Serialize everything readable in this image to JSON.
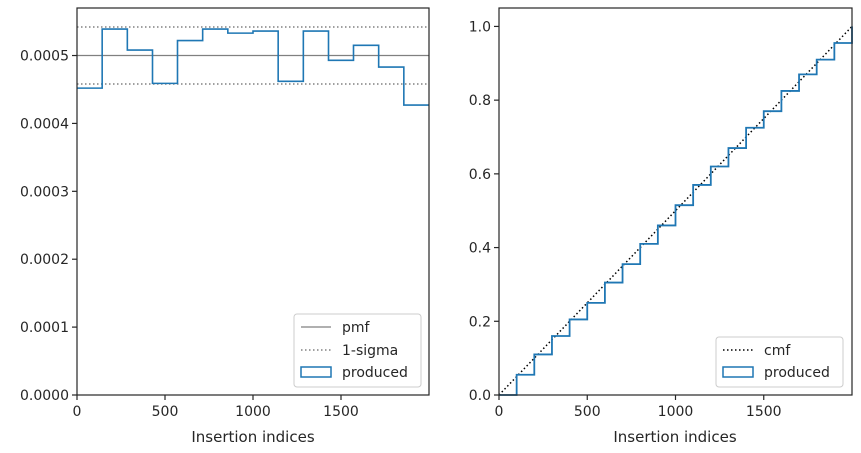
{
  "chart_data": [
    {
      "type": "line",
      "xlabel": "Insertion indices",
      "xlim": [
        0,
        2000
      ],
      "ylim": [
        0,
        0.00057
      ],
      "xticks": [
        0,
        500,
        1000,
        1500
      ],
      "xtick_labels": [
        "0",
        "500",
        "1000",
        "1500"
      ],
      "yticks": [
        0,
        0.0001,
        0.0002,
        0.0003,
        0.0004,
        0.0005
      ],
      "ytick_labels": [
        "0.0000",
        "0.0001",
        "0.0002",
        "0.0003",
        "0.0004",
        "0.0005"
      ],
      "grid": false,
      "legend_position": "lower-right",
      "reference_lines": [
        {
          "name": "pmf",
          "y": 0.0005,
          "style": "solid",
          "color": "#808080"
        },
        {
          "name": "1-sigma",
          "y": 0.000542,
          "style": "dotted",
          "color": "#808080"
        },
        {
          "name": "1-sigma",
          "y": 0.000458,
          "style": "dotted",
          "color": "#808080"
        }
      ],
      "series": [
        {
          "name": "produced",
          "kind": "step-histogram",
          "color": "#1f77b4",
          "bin_edges": [
            0,
            143,
            286,
            429,
            571,
            714,
            857,
            1000,
            1143,
            1286,
            1429,
            1571,
            1714,
            1857,
            2000
          ],
          "values": [
            0.000452,
            0.000539,
            0.000508,
            0.000459,
            0.000522,
            0.000539,
            0.000533,
            0.000536,
            0.000462,
            0.000536,
            0.000493,
            0.000515,
            0.000483,
            0.000427
          ]
        }
      ],
      "legend": [
        "pmf",
        "1-sigma",
        "produced"
      ]
    },
    {
      "type": "line",
      "xlabel": "Insertion indices",
      "xlim": [
        0,
        2000
      ],
      "ylim": [
        0,
        1.05
      ],
      "xticks": [
        0,
        500,
        1000,
        1500
      ],
      "xtick_labels": [
        "0",
        "500",
        "1000",
        "1500"
      ],
      "yticks": [
        0,
        0.2,
        0.4,
        0.6,
        0.8,
        1.0
      ],
      "ytick_labels": [
        "0.0",
        "0.2",
        "0.4",
        "0.6",
        "0.8",
        "1.0"
      ],
      "grid": false,
      "legend_position": "lower-right",
      "series": [
        {
          "name": "cmf",
          "style": "dotted",
          "color": "#000000",
          "x": [
            0,
            2000
          ],
          "y": [
            0,
            1.0
          ]
        },
        {
          "name": "produced",
          "style": "step",
          "color": "#1f77b4",
          "x": [
            0,
            100,
            200,
            300,
            400,
            500,
            600,
            700,
            800,
            900,
            1000,
            1100,
            1200,
            1300,
            1400,
            1500,
            1600,
            1700,
            1800,
            1900,
            2000
          ],
          "y": [
            0,
            0.055,
            0.11,
            0.16,
            0.205,
            0.25,
            0.305,
            0.355,
            0.41,
            0.46,
            0.515,
            0.57,
            0.62,
            0.67,
            0.725,
            0.77,
            0.825,
            0.87,
            0.91,
            0.955,
            1.0
          ]
        }
      ],
      "legend": [
        "cmf",
        "produced"
      ]
    }
  ]
}
